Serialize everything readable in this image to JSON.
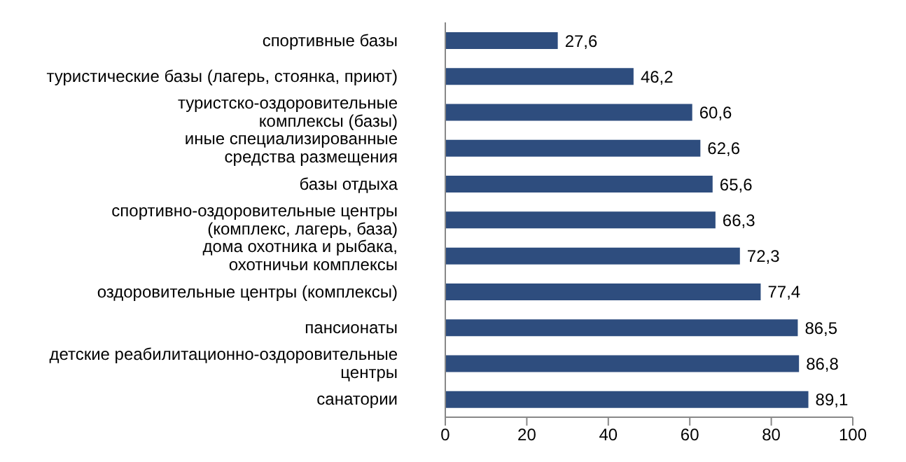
{
  "chart_data": {
    "type": "bar",
    "orientation": "horizontal",
    "categories": [
      "спортивные базы",
      "туристические базы (лагерь, стоянка, приют)",
      "туристско-оздоровительные\nкомплексы (базы)",
      "иные специализированные\nсредства размещения",
      "базы отдыха",
      "спортивно-оздоровительные центры\n(комплекс, лагерь, база)",
      "дома охотника и рыбака,\nохотничьи комплексы",
      "оздоровительные центры (комплексы)",
      "пансионаты",
      "детские реабилитационно-оздоровительные\nцентры",
      "санатории"
    ],
    "values": [
      27.6,
      46.2,
      60.6,
      62.6,
      65.6,
      66.3,
      72.3,
      77.4,
      86.5,
      86.8,
      89.1
    ],
    "value_labels": [
      "27,6",
      "46,2",
      "60,6",
      "62,6",
      "65,6",
      "66,3",
      "72,3",
      "77,4",
      "86,5",
      "86,8",
      "89,1"
    ],
    "color": "#2e4d7e",
    "xlim": [
      0,
      100
    ],
    "xticks": [
      0,
      20,
      40,
      60,
      80,
      100
    ],
    "grid": false,
    "legend": false
  }
}
